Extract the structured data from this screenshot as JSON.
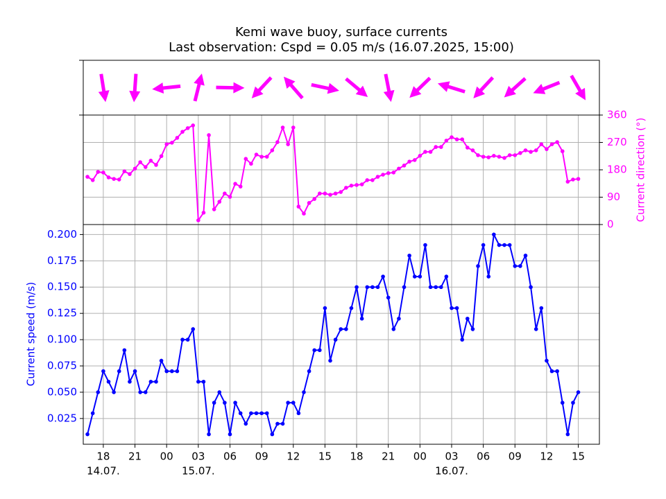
{
  "chart_data": {
    "type": "line",
    "title": "Kemi wave buoy, surface currents",
    "subtitle": "Last observation: Cspd = 0.05 m/s (16.07.2025, 15:00)",
    "x": [
      16.5,
      17,
      17.5,
      18,
      18.5,
      19,
      19.5,
      20,
      20.5,
      21,
      21.5,
      22,
      22.5,
      23,
      23.5,
      24,
      24.5,
      25,
      25.5,
      26,
      26.5,
      27,
      27.5,
      28,
      28.5,
      29,
      29.5,
      30,
      30.5,
      31,
      31.5,
      32,
      32.5,
      33,
      33.5,
      34,
      34.5,
      35,
      35.5,
      36,
      36.5,
      37,
      37.5,
      38,
      38.5,
      39,
      39.5,
      40,
      40.5,
      41,
      41.5,
      42,
      42.5,
      43,
      43.5,
      44,
      44.5,
      45,
      45.5,
      46,
      46.5,
      47,
      47.5,
      48,
      48.5,
      49,
      49.5,
      50,
      50.5,
      51,
      51.5,
      52,
      52.5,
      53,
      53.5,
      54,
      54.5,
      55,
      55.5,
      56,
      56.5,
      57,
      57.5,
      58,
      58.5,
      59,
      59.5,
      60,
      60.5,
      61,
      61.5,
      62,
      62.5,
      63
    ],
    "xlim": [
      16.1,
      65.0
    ],
    "xticks": [
      18,
      21,
      {
        "value": 24,
        "label": "00"
      },
      {
        "value": 27,
        "label": "03"
      },
      {
        "value": 30,
        "label": "06"
      },
      {
        "value": 33,
        "label": "09"
      },
      {
        "value": 36,
        "label": "12"
      },
      {
        "value": 39,
        "label": "15"
      },
      {
        "value": 42,
        "label": "18"
      },
      {
        "value": 45,
        "label": "21"
      },
      {
        "value": 48,
        "label": "00"
      },
      {
        "value": 51,
        "label": "03"
      },
      {
        "value": 54,
        "label": "06"
      },
      {
        "value": 57,
        "label": "09"
      },
      {
        "value": 60,
        "label": "12"
      },
      {
        "value": 63,
        "label": "15"
      }
    ],
    "date_labels": [
      {
        "value": 18,
        "label": "14.07."
      },
      {
        "value": 27,
        "label": "15.07."
      },
      {
        "value": 51,
        "label": "16.07."
      }
    ],
    "ylim": [
      0.0005,
      0.2095
    ],
    "yticks": [
      0.025,
      {
        "value": 0.05,
        "label": "0.050"
      },
      0.075,
      {
        "value": 0.1,
        "label": "0.100"
      },
      0.125,
      {
        "value": 0.15,
        "label": "0.150"
      },
      0.175,
      {
        "value": 0.2,
        "label": "0.200"
      }
    ],
    "y2lim": [
      0,
      360
    ],
    "y2ticks": [
      0,
      90,
      180,
      270,
      360
    ],
    "grid": true,
    "series": [
      {
        "name": "Current speed (m/s)",
        "color": "#0000ff",
        "values": [
          0.01,
          0.03,
          0.05,
          0.07,
          0.06,
          0.05,
          0.07,
          0.09,
          0.06,
          0.07,
          0.05,
          0.05,
          0.06,
          0.06,
          0.08,
          0.07,
          0.07,
          0.07,
          0.1,
          0.1,
          0.11,
          0.06,
          0.06,
          0.01,
          0.04,
          0.05,
          0.04,
          0.01,
          0.04,
          0.03,
          0.02,
          0.03,
          0.03,
          0.03,
          0.03,
          0.01,
          0.02,
          0.02,
          0.04,
          0.04,
          0.03,
          0.05,
          0.07,
          0.09,
          0.09,
          0.13,
          0.08,
          0.1,
          0.11,
          0.11,
          0.13,
          0.15,
          0.12,
          0.15,
          0.15,
          0.15,
          0.16,
          0.14,
          0.11,
          0.12,
          0.15,
          0.18,
          0.16,
          0.16,
          0.19,
          0.15,
          0.15,
          0.15,
          0.16,
          0.13,
          0.13,
          0.1,
          0.12,
          0.11,
          0.17,
          0.19,
          0.16,
          0.2,
          0.19,
          0.19,
          0.19,
          0.17,
          0.17,
          0.18,
          0.15,
          0.11,
          0.13,
          0.08,
          0.07,
          0.07,
          0.04,
          0.01,
          0.04,
          0.05
        ]
      },
      {
        "name": "Current direction (°)",
        "color": "#ff00ff",
        "axis": "y2",
        "values": [
          157,
          146,
          173,
          171,
          155,
          150,
          148,
          175,
          166,
          184,
          205,
          189,
          210,
          196,
          225,
          264,
          269,
          285,
          305,
          317,
          326,
          14,
          39,
          294,
          50,
          75,
          102,
          91,
          134,
          125,
          216,
          200,
          230,
          223,
          223,
          244,
          271,
          319,
          264,
          319,
          59,
          36,
          71,
          84,
          102,
          102,
          98,
          102,
          107,
          121,
          128,
          130,
          132,
          146,
          146,
          157,
          164,
          169,
          171,
          184,
          194,
          207,
          212,
          226,
          239,
          239,
          255,
          255,
          276,
          287,
          280,
          280,
          253,
          244,
          228,
          223,
          221,
          226,
          223,
          219,
          228,
          228,
          235,
          244,
          239,
          244,
          264,
          248,
          264,
          271,
          241,
          141,
          148,
          150
        ]
      }
    ]
  }
}
